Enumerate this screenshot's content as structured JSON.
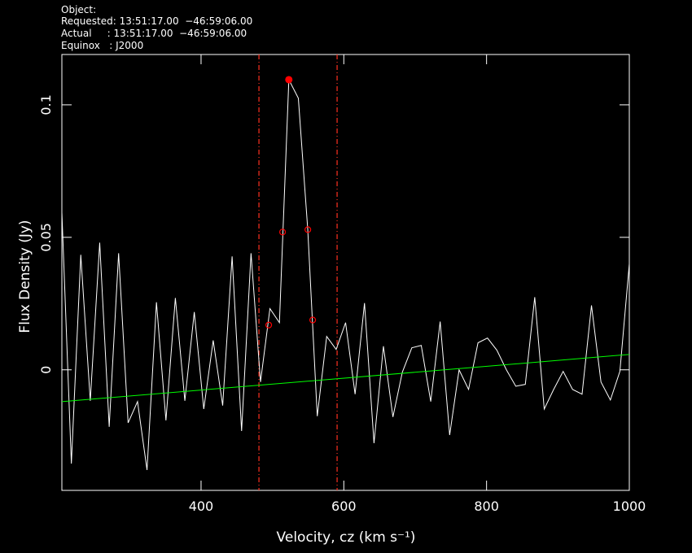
{
  "chart_data": {
    "type": "line",
    "header": [
      "Object:",
      "Requested: 13:51:17.00  −46:59:06.00",
      "Actual     : 13:51:17.00  −46:59:06.00",
      "Equinox   : J2000"
    ],
    "xlabel": "Velocity, cz (km s⁻¹)",
    "ylabel": "Flux Density (Jy)",
    "xlim": [
      205,
      1000
    ],
    "ylim": [
      -0.0455,
      0.119
    ],
    "xticks": [
      400,
      600,
      800,
      1000
    ],
    "yticks": [
      0,
      0.05,
      0.1
    ],
    "color": "#ffffff",
    "x": [
      205.0,
      218.3,
      231.5,
      244.8,
      258.0,
      271.3,
      284.5,
      297.8,
      311.0,
      324.3,
      337.5,
      350.8,
      364.0,
      377.3,
      390.5,
      403.8,
      417.0,
      430.3,
      443.5,
      456.8,
      470.0,
      483.3,
      496.5,
      509.8,
      523.0,
      536.3,
      549.5,
      562.8,
      576.0,
      589.3,
      602.5,
      615.8,
      629.0,
      642.3,
      655.5,
      668.8,
      682.0,
      695.3,
      708.5,
      721.8,
      735.0,
      748.3,
      761.5,
      774.8,
      788.0,
      801.3,
      814.5,
      827.8,
      841.0,
      854.3,
      867.5,
      880.8,
      894.0,
      907.3,
      920.5,
      933.8,
      947.0,
      960.3,
      973.5,
      986.8,
      1000.0
    ],
    "values": [
      0.0594,
      -0.0354,
      0.0434,
      -0.0117,
      0.048,
      -0.0215,
      0.044,
      -0.02,
      -0.012,
      -0.0378,
      0.0255,
      -0.0191,
      0.0271,
      -0.0117,
      0.0218,
      -0.0148,
      0.0111,
      -0.0135,
      0.0428,
      -0.0231,
      0.044,
      -0.0046,
      0.0231,
      0.0178,
      0.1095,
      0.1025,
      0.0529,
      -0.0175,
      0.0126,
      0.0077,
      0.0178,
      -0.0092,
      0.0252,
      -0.0277,
      0.0089,
      -0.0178,
      -0.0009,
      0.0083,
      0.0092,
      -0.012,
      0.0182,
      -0.0246,
      0,
      -0.0074,
      0.0102,
      0.012,
      0.0074,
      0,
      -0.0062,
      -0.0055,
      0.0274,
      -0.0148,
      -0.0074,
      -0.0006,
      -0.0074,
      -0.0092,
      0.0243,
      -0.0046,
      -0.0114,
      -0.0006,
      0.04
    ],
    "baseline": {
      "color": "#00ff00",
      "x": [
        205,
        1000
      ],
      "values": [
        -0.012,
        0.0058
      ]
    },
    "peak": {
      "color": "#ff0000",
      "x": 523.0,
      "value": 0.1095
    },
    "width_points": {
      "color": "#ff0000",
      "x": [
        494.8,
        514.2,
        549.6,
        556.4
      ],
      "values": [
        0.0169,
        0.052,
        0.0529,
        0.0188
      ]
    },
    "vlines": {
      "color": "#ff3020",
      "x": [
        481.1,
        590.6
      ]
    }
  }
}
